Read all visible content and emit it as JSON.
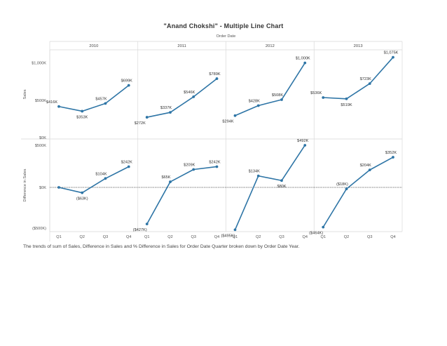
{
  "title": "\"Anand Chokshi\" - Multiple Line Chart",
  "caption": "The trends of sum of Sales, Difference in Sales and % Difference in Sales for Order Date Quarter broken down by Order Date Year.",
  "colors": {
    "line": "#2e75a6",
    "grid": "#d9d9d9",
    "zero_line": "#555555"
  },
  "chart_data": {
    "type": "line",
    "column_header": "Order Date",
    "years": [
      "2010",
      "2011",
      "2012",
      "2013"
    ],
    "quarters": [
      "Q1",
      "Q2",
      "Q3",
      "Q4"
    ],
    "rows": [
      {
        "label": "Sales",
        "ylim": [
          0,
          1100
        ],
        "ticks": [
          {
            "value": 1000,
            "label": "$1,000K"
          },
          {
            "value": 500,
            "label": "$500K"
          },
          {
            "value": 0,
            "label": "$0K"
          }
        ],
        "zero_line": false,
        "series": [
          {
            "year": "2010",
            "values": [
              416,
              353,
              457,
              699
            ],
            "labels": [
              "$416K",
              "$353K",
              "$457K",
              "$699K"
            ]
          },
          {
            "year": "2011",
            "values": [
              272,
              337,
              546,
              789
            ],
            "labels": [
              "$272K",
              "$337K",
              "$546K",
              "$789K"
            ]
          },
          {
            "year": "2012",
            "values": [
              294,
              428,
              508,
              1000
            ],
            "labels": [
              "$294K",
              "$428K",
              "$508K",
              "$1,000K"
            ]
          },
          {
            "year": "2013",
            "values": [
              536,
              519,
              723,
              1075
            ],
            "labels": [
              "$536K",
              "$519K",
              "$723K",
              "$1,075K"
            ]
          }
        ]
      },
      {
        "label": "Difference in Sales",
        "ylim": [
          -500,
          500
        ],
        "ticks": [
          {
            "value": 500,
            "label": "$500K"
          },
          {
            "value": 0,
            "label": "$0K"
          },
          {
            "value": -500,
            "label": "($500K)"
          }
        ],
        "zero_line": true,
        "series": [
          {
            "year": "2010",
            "values": [
              0,
              -63,
              104,
              242
            ],
            "labels": [
              "",
              "($63K)",
              "$104K",
              "$242K"
            ]
          },
          {
            "year": "2011",
            "values": [
              -427,
              65,
              209,
              242
            ],
            "labels": [
              "($427K)",
              "$65K",
              "$209K",
              "$242K"
            ]
          },
          {
            "year": "2012",
            "values": [
              -495,
              134,
              80,
              492
            ],
            "labels": [
              "($495K)",
              "$134K",
              "$80K",
              "$492K"
            ]
          },
          {
            "year": "2013",
            "values": [
              -464,
              -18,
              204,
              352
            ],
            "labels": [
              "($464K)",
              "($18K)",
              "$204K",
              "$352K"
            ]
          }
        ]
      }
    ]
  }
}
